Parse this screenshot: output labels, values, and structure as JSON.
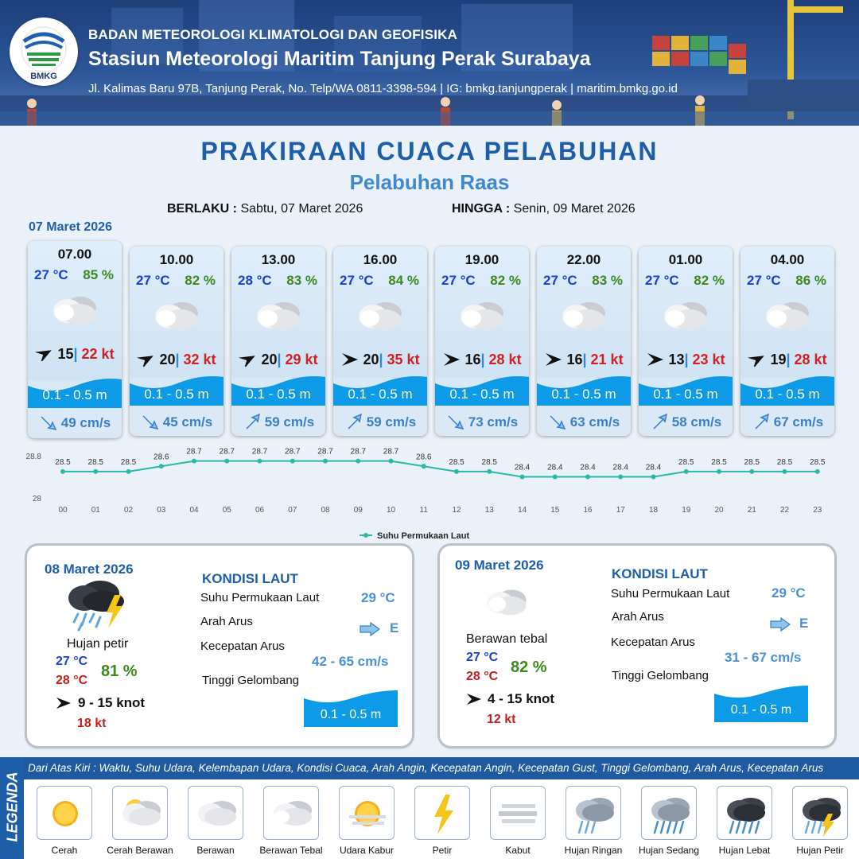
{
  "header": {
    "logo_text": "BMKG",
    "agency": "BADAN METEOROLOGI KLIMATOLOGI DAN GEOFISIKA",
    "station": "Stasiun Meteorologi Maritim Tanjung Perak Surabaya",
    "address": "Jl. Kalimas Baru 97B, Tanjung Perak, No. Telp/WA 0811-3398-594 | IG: bmkg.tanjungperak | maritim.bmkg.go.id"
  },
  "title": "PRAKIRAAN CUACA PELABUHAN",
  "subtitle": "Pelabuhan Raas",
  "validity": {
    "from_label": "BERLAKU :",
    "from_value": "Sabtu, 07 Maret 2026",
    "to_label": "HINGGA :",
    "to_value": "Senin, 09 Maret 2026"
  },
  "day1_date": "07 Maret 2026",
  "forecasts": [
    {
      "time": "07.00",
      "temp": "27 °C",
      "rh": "85 %",
      "condition": "cloudy",
      "wind_dir": "NE",
      "wind": "15",
      "gust": "22 kt",
      "wave": "0.1 - 0.5 m",
      "cur_dir": "SE",
      "current": "49 cm/s"
    },
    {
      "time": "10.00",
      "temp": "27 °C",
      "rh": "82 %",
      "condition": "cloudy",
      "wind_dir": "NE",
      "wind": "20",
      "gust": "32 kt",
      "wave": "0.1 - 0.5 m",
      "cur_dir": "SE",
      "current": "45 cm/s"
    },
    {
      "time": "13.00",
      "temp": "28 °C",
      "rh": "83 %",
      "condition": "cloudy",
      "wind_dir": "NE",
      "wind": "20",
      "gust": "29 kt",
      "wave": "0.1 - 0.5 m",
      "cur_dir": "NE",
      "current": "59 cm/s"
    },
    {
      "time": "16.00",
      "temp": "27 °C",
      "rh": "84 %",
      "condition": "cloudy",
      "wind_dir": "E",
      "wind": "20",
      "gust": "35 kt",
      "wave": "0.1 - 0.5 m",
      "cur_dir": "NE",
      "current": "59 cm/s"
    },
    {
      "time": "19.00",
      "temp": "27 °C",
      "rh": "82 %",
      "condition": "cloudy",
      "wind_dir": "E",
      "wind": "16",
      "gust": "28 kt",
      "wave": "0.1 - 0.5 m",
      "cur_dir": "SE",
      "current": "73 cm/s"
    },
    {
      "time": "22.00",
      "temp": "27 °C",
      "rh": "83 %",
      "condition": "cloudy",
      "wind_dir": "E",
      "wind": "16",
      "gust": "21 kt",
      "wave": "0.1 - 0.5 m",
      "cur_dir": "SE",
      "current": "63 cm/s"
    },
    {
      "time": "01.00",
      "temp": "27 °C",
      "rh": "82 %",
      "condition": "cloudy",
      "wind_dir": "E",
      "wind": "13",
      "gust": "23 kt",
      "wave": "0.1 - 0.5 m",
      "cur_dir": "NE",
      "current": "58 cm/s"
    },
    {
      "time": "04.00",
      "temp": "27 °C",
      "rh": "86 %",
      "condition": "cloudy",
      "wind_dir": "NE",
      "wind": "19",
      "gust": "28 kt",
      "wave": "0.1 - 0.5 m",
      "cur_dir": "NE",
      "current": "67 cm/s"
    }
  ],
  "chart_data": {
    "type": "line",
    "title": "",
    "xlabel": "",
    "ylabel": "",
    "ylim": [
      28,
      28.8
    ],
    "y_ticks": [
      "28.8",
      "28"
    ],
    "categories": [
      "00",
      "01",
      "02",
      "03",
      "04",
      "05",
      "06",
      "07",
      "08",
      "09",
      "10",
      "11",
      "12",
      "13",
      "14",
      "15",
      "16",
      "17",
      "18",
      "19",
      "20",
      "21",
      "22",
      "23"
    ],
    "series": [
      {
        "name": "Suhu Permukaan Laut",
        "color": "#29b9a6",
        "values": [
          28.5,
          28.5,
          28.5,
          28.6,
          28.7,
          28.7,
          28.7,
          28.7,
          28.7,
          28.7,
          28.7,
          28.6,
          28.5,
          28.5,
          28.4,
          28.4,
          28.4,
          28.4,
          28.4,
          28.5,
          28.5,
          28.5,
          28.5,
          28.5
        ]
      }
    ],
    "legend_position": "bottom",
    "grid": false
  },
  "day2": {
    "date": "08 Maret 2026",
    "condition_icon": "hujan-petir",
    "condition": "Hujan petir",
    "temp_min": "27 °C",
    "temp_max": "28 °C",
    "rh": "81 %",
    "wind": "9  - 15 knot",
    "gust": "18 kt",
    "sea_title": "KONDISI LAUT",
    "sst_label": "Suhu Permukaan Laut",
    "sst": "29 °C",
    "cur_dir_label": "Arah Arus",
    "cur_dir": "E",
    "cur_speed_label": "Kecepatan Arus",
    "cur_speed": "42  - 65 cm/s",
    "wave_label": "Tinggi Gelombang",
    "wave": "0.1 - 0.5 m"
  },
  "day3": {
    "date": "09 Maret 2026",
    "condition_icon": "berawan-tebal",
    "condition": "Berawan tebal",
    "temp_min": "27 °C",
    "temp_max": "28 °C",
    "rh": "82 %",
    "wind": "4  - 15 knot",
    "gust": "12 kt",
    "sea_title": "KONDISI LAUT",
    "sst_label": "Suhu Permukaan Laut",
    "sst": "29 °C",
    "cur_dir_label": "Arah Arus",
    "cur_dir": "E",
    "cur_speed_label": "Kecepatan Arus",
    "cur_speed": "31  - 67 cm/s",
    "wave_label": "Tinggi Gelombang",
    "wave": "0.1 - 0.5 m"
  },
  "legend": {
    "tab": "LEGENDA",
    "caption": "Dari Atas Kiri : Waktu, Suhu Udara, Kelembapan Udara, Kondisi Cuaca, Arah Angin, Kecepatan Angin, Kecepatan Gust, Tinggi Gelombang, Arah Arus, Kecepatan Arus",
    "items": [
      {
        "label": "Cerah",
        "icon": "cerah"
      },
      {
        "label": "Cerah Berawan",
        "icon": "cerah-berawan"
      },
      {
        "label": "Berawan",
        "icon": "berawan"
      },
      {
        "label": "Berawan Tebal",
        "icon": "berawan-tebal"
      },
      {
        "label": "Udara Kabur",
        "icon": "udara-kabur"
      },
      {
        "label": "Petir",
        "icon": "petir"
      },
      {
        "label": "Kabut",
        "icon": "kabut"
      },
      {
        "label": "Hujan Ringan",
        "icon": "hujan-ringan"
      },
      {
        "label": "Hujan Sedang",
        "icon": "hujan-sedang"
      },
      {
        "label": "Hujan Lebat",
        "icon": "hujan-lebat"
      },
      {
        "label": "Hujan Petir",
        "icon": "hujan-petir"
      }
    ]
  },
  "colors": {
    "primary": "#1e5ea8",
    "temp": "#1a3fd6",
    "humidity": "#3c8a1c",
    "gust": "#d11e1e",
    "wave": "#0d9be8",
    "sst_line": "#29b9a6"
  }
}
